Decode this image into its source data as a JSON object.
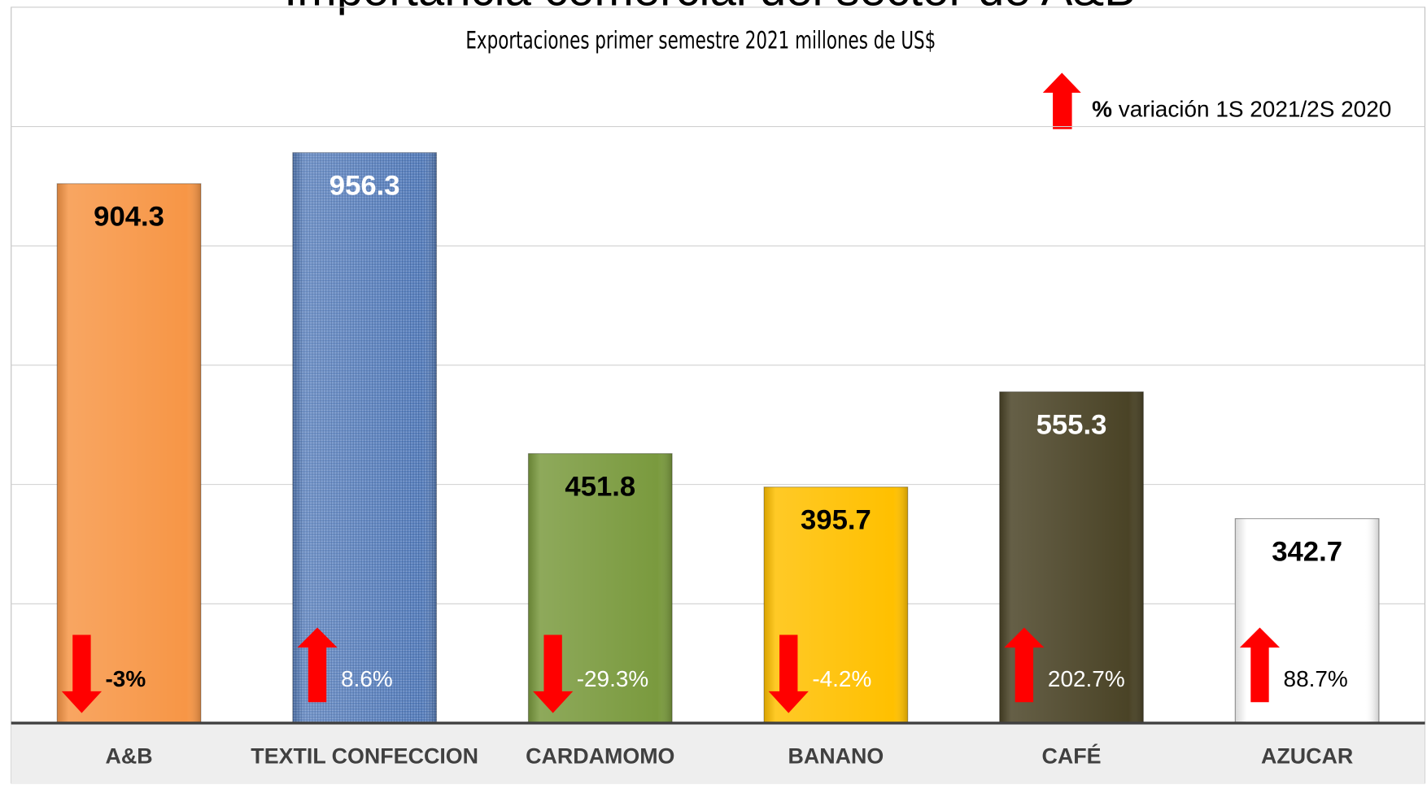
{
  "chart_data": {
    "type": "bar",
    "title": "Importancia comercial del sector de A&B",
    "subtitle": "Exportaciones  primer  semestre 2021  millones de US$",
    "legend_note": {
      "symbol": "%",
      "text": "variación  1S 2021/2S 2020"
    },
    "categories": [
      "A&B",
      "TEXTIL CONFECCION",
      "CARDAMOMO",
      "BANANO",
      "CAFÉ",
      "AZUCAR"
    ],
    "values": [
      904.3,
      956.3,
      451.8,
      395.7,
      555.3,
      342.7
    ],
    "colors": [
      "#f79646",
      "#5a82c0",
      "#7a9a3e",
      "#ffc000",
      "#4a4326",
      "#ffffff"
    ],
    "label_colors": [
      "#000000",
      "#ffffff",
      "#000000",
      "#000000",
      "#ffffff",
      "#000000"
    ],
    "changes": [
      -3,
      8.6,
      -29.3,
      -4.2,
      202.7,
      88.7
    ],
    "change_labels": [
      "-3%",
      "8.6%",
      "-29.3%",
      "-4.2%",
      "202.7%",
      "88.7%"
    ],
    "change_label_colors": [
      "#000000",
      "#ffffff",
      "#ffffff",
      "#ffffff",
      "#ffffff",
      "#000000"
    ],
    "arrow_color": "#ff0000",
    "ylim": [
      0,
      1200
    ],
    "yticks": [
      0,
      200,
      400,
      600,
      800,
      1000,
      1200
    ],
    "grid": true
  }
}
